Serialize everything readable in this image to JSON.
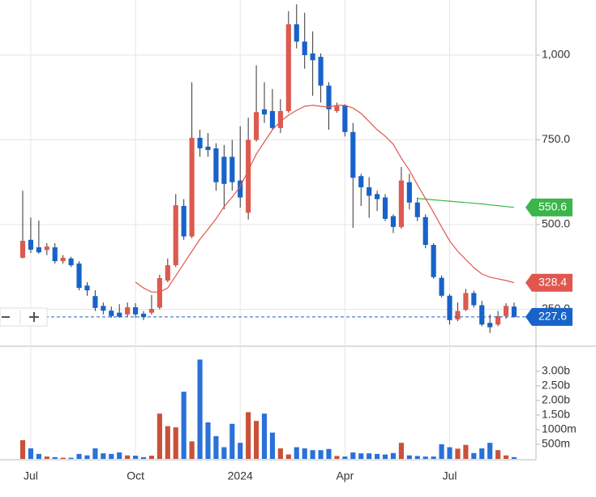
{
  "chart_data": {
    "type": "candlestick",
    "categories": [
      null,
      "Jul",
      null,
      null,
      null,
      null,
      null,
      null,
      null,
      null,
      null,
      null,
      null,
      null,
      "Oct",
      null,
      null,
      null,
      null,
      null,
      null,
      null,
      null,
      null,
      null,
      null,
      null,
      "2024",
      null,
      null,
      null,
      null,
      null,
      null,
      null,
      null,
      null,
      null,
      null,
      null,
      "Apr",
      null,
      null,
      null,
      null,
      null,
      null,
      null,
      null,
      null,
      null,
      null,
      null,
      "Jul",
      null,
      null,
      null,
      null,
      null,
      null,
      null,
      null
    ],
    "open": [
      402,
      455,
      433,
      425,
      433,
      392,
      400,
      385,
      320,
      289,
      260,
      246,
      240,
      235,
      256,
      237,
      240,
      255,
      335,
      380,
      555,
      465,
      756,
      730,
      725,
      700,
      700,
      630,
      535,
      750,
      840,
      835,
      785,
      835,
      1091,
      1040,
      1005,
      995,
      910,
      835,
      852,
      773,
      643,
      610,
      590,
      580,
      525,
      493,
      625,
      565,
      522,
      440,
      343,
      290,
      220,
      248,
      298,
      262,
      210,
      205,
      230,
      258
    ],
    "high": [
      600,
      521,
      512,
      445,
      445,
      410,
      405,
      392,
      330,
      306,
      270,
      258,
      265,
      270,
      268,
      245,
      292,
      352,
      400,
      590,
      575,
      920,
      780,
      770,
      740,
      735,
      750,
      790,
      815,
      970,
      920,
      900,
      870,
      1130,
      1150,
      1125,
      1070,
      1005,
      920,
      860,
      855,
      800,
      650,
      640,
      600,
      590,
      530,
      670,
      650,
      580,
      530,
      445,
      350,
      295,
      270,
      310,
      305,
      275,
      235,
      245,
      268,
      270
    ],
    "low": [
      400,
      416,
      414,
      410,
      385,
      385,
      375,
      306,
      290,
      245,
      235,
      225,
      225,
      228,
      225,
      218,
      235,
      250,
      330,
      375,
      455,
      460,
      700,
      700,
      600,
      545,
      600,
      550,
      515,
      745,
      800,
      780,
      770,
      830,
      1020,
      960,
      880,
      860,
      780,
      830,
      760,
      490,
      555,
      520,
      540,
      510,
      475,
      488,
      545,
      510,
      430,
      340,
      285,
      205,
      215,
      245,
      255,
      200,
      180,
      200,
      222,
      225
    ],
    "close": [
      452,
      426,
      418,
      435,
      392,
      402,
      380,
      313,
      306,
      254,
      246,
      230,
      228,
      256,
      235,
      227,
      251,
      342,
      380,
      557,
      465,
      756,
      725,
      720,
      625,
      620,
      625,
      580,
      750,
      832,
      825,
      785,
      835,
      1091,
      1040,
      1000,
      985,
      910,
      840,
      850,
      773,
      638,
      610,
      585,
      575,
      517,
      493,
      630,
      565,
      522,
      440,
      345,
      290,
      218,
      245,
      298,
      262,
      205,
      197,
      230,
      260,
      227.6
    ],
    "up_color": "#dc5a4f",
    "down_color": "#1763c9",
    "ylim": [
      141.1,
      1162.7
    ],
    "yticks": [
      {
        "value": 250,
        "label": "250.0"
      },
      {
        "value": 500,
        "label": "500.0"
      },
      {
        "value": 750,
        "label": "750.0"
      },
      {
        "value": 1000,
        "label": "1,000"
      }
    ],
    "lines": [
      {
        "color": "#e0574f",
        "values": [
          null,
          null,
          null,
          null,
          null,
          null,
          null,
          null,
          null,
          null,
          null,
          null,
          null,
          null,
          330,
          313,
          301,
          301,
          313,
          349,
          385,
          421,
          457,
          486,
          517,
          553,
          581,
          612,
          660,
          708,
          744,
          780,
          804,
          823,
          837,
          849,
          852,
          849,
          847,
          852,
          852,
          844,
          828,
          804,
          780,
          761,
          737,
          696,
          660,
          617,
          577,
          536,
          493,
          452,
          421,
          397,
          373,
          354,
          345,
          340,
          335,
          328.4
        ]
      },
      {
        "color": "#3cb54a",
        "values": [
          null,
          null,
          null,
          null,
          null,
          null,
          null,
          null,
          null,
          null,
          null,
          null,
          null,
          null,
          null,
          null,
          null,
          null,
          null,
          null,
          null,
          null,
          null,
          null,
          null,
          null,
          null,
          null,
          null,
          null,
          null,
          null,
          null,
          null,
          null,
          null,
          null,
          null,
          null,
          null,
          null,
          null,
          null,
          null,
          null,
          null,
          null,
          null,
          null,
          577,
          575,
          573,
          571,
          569,
          567,
          565,
          563,
          561,
          558,
          556,
          553,
          550.6
        ]
      }
    ],
    "volume": {
      "up_color": "#c9513a",
      "down_color": "#2a71d8",
      "values": [
        0.64,
        0.36,
        0.17,
        0.08,
        0.06,
        0.04,
        0.04,
        0.17,
        0.12,
        0.36,
        0.19,
        0.17,
        0.22,
        0.12,
        0.11,
        0.06,
        0.11,
        1.55,
        1.12,
        1.08,
        2.3,
        0.6,
        3.4,
        1.25,
        0.78,
        0.4,
        1.2,
        0.55,
        1.6,
        1.3,
        1.55,
        0.9,
        0.36,
        0.15,
        0.4,
        0.36,
        0.3,
        0.3,
        0.34,
        0.1,
        0.08,
        0.22,
        0.19,
        0.19,
        0.17,
        0.15,
        0.2,
        0.55,
        0.12,
        0.1,
        0.08,
        0.08,
        0.5,
        0.4,
        0.35,
        0.48,
        0.2,
        0.36,
        0.55,
        0.3,
        0.12,
        0.06
      ],
      "ylim": [
        0,
        3.83
      ],
      "yticks": [
        {
          "value": 0.5,
          "label": "500m"
        },
        {
          "value": 1,
          "label": "1000m"
        },
        {
          "value": 1.5,
          "label": "1.50b"
        },
        {
          "value": 2,
          "label": "2.00b"
        },
        {
          "value": 2.5,
          "label": "2.50b"
        },
        {
          "value": 3,
          "label": "3.00b"
        }
      ]
    }
  }
}
